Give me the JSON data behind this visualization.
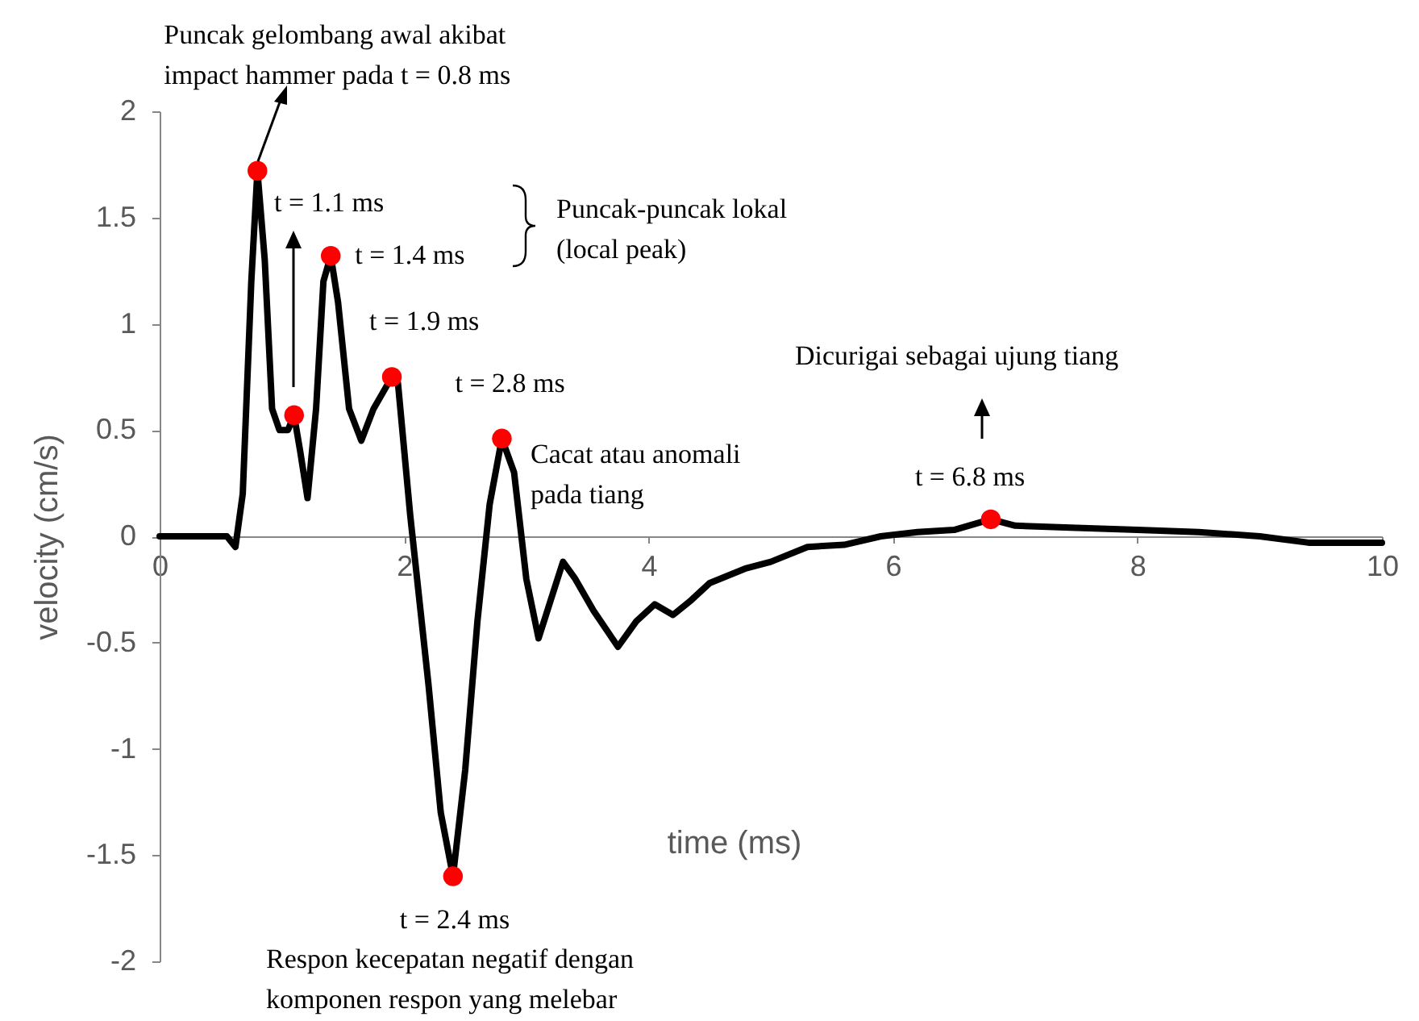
{
  "chart_data": {
    "type": "line",
    "xlabel": "time (ms)",
    "ylabel": "velocity (cm/s)",
    "xlim": [
      0,
      10
    ],
    "ylim": [
      -2,
      2
    ],
    "xticks": [
      0,
      2,
      4,
      6,
      8,
      10
    ],
    "yticks": [
      -2,
      -1.5,
      -1,
      -0.5,
      0,
      0.5,
      1,
      1.5,
      2
    ],
    "series": [
      {
        "type": "line",
        "color": "#000000",
        "x": [
          0,
          0.55,
          0.62,
          0.68,
          0.75,
          0.8,
          0.86,
          0.92,
          0.98,
          1.05,
          1.1,
          1.15,
          1.21,
          1.28,
          1.34,
          1.4,
          1.46,
          1.55,
          1.65,
          1.75,
          1.9,
          1.95,
          2.05,
          2.2,
          2.3,
          2.4,
          2.5,
          2.6,
          2.7,
          2.8,
          2.9,
          3.0,
          3.1,
          3.2,
          3.3,
          3.4,
          3.55,
          3.75,
          3.9,
          4.05,
          4.2,
          4.35,
          4.5,
          4.8,
          5.0,
          5.3,
          5.6,
          5.9,
          6.2,
          6.5,
          6.8,
          7.0,
          7.5,
          8.0,
          8.5,
          9.0,
          9.4,
          9.7,
          10
        ],
        "values": [
          0,
          0,
          -0.05,
          0.2,
          1.2,
          1.72,
          1.3,
          0.6,
          0.5,
          0.5,
          0.57,
          0.4,
          0.18,
          0.6,
          1.2,
          1.32,
          1.1,
          0.6,
          0.45,
          0.6,
          0.75,
          0.72,
          0.1,
          -0.7,
          -1.3,
          -1.6,
          -1.1,
          -0.4,
          0.15,
          0.46,
          0.3,
          -0.2,
          -0.48,
          -0.3,
          -0.12,
          -0.2,
          -0.35,
          -0.52,
          -0.4,
          -0.32,
          -0.37,
          -0.3,
          -0.22,
          -0.15,
          -0.12,
          -0.05,
          -0.04,
          0,
          0.02,
          0.03,
          0.08,
          0.05,
          0.04,
          0.03,
          0.02,
          0,
          -0.03,
          -0.03,
          -0.03
        ]
      },
      {
        "type": "scatter",
        "color": "#ff0000",
        "x": [
          0.8,
          1.1,
          1.4,
          1.9,
          2.4,
          2.8,
          6.8
        ],
        "values": [
          1.72,
          0.57,
          1.32,
          0.75,
          -1.6,
          0.46,
          0.08
        ]
      }
    ],
    "annotations": [
      {
        "text": "Puncak gelombang awal akibat\nimpact hammer pada t = 0.8 ms",
        "x": 0.8,
        "y": 1.72
      },
      "t = 1.1 ms",
      {
        "text": "t = 1.4 ms",
        "x": 1.4,
        "y": 1.32
      },
      "Puncak-puncak lokal\n(local peak)",
      {
        "text": "t = 1.9 ms",
        "x": 1.9,
        "y": 0.75
      },
      {
        "text": "t = 2.8 ms",
        "x": 2.8,
        "y": 0.46
      },
      "Cacat atau anomali\npada tiang",
      {
        "text": "t = 2.4 ms",
        "x": 2.4,
        "y": -1.6
      },
      "Respon kecepatan negatif dengan\nkomponen respon yang melebar",
      {
        "text": "t = 6.8 ms",
        "x": 6.8,
        "y": 0.08
      },
      "Dicurigai sebagai ujung tiang"
    ]
  }
}
